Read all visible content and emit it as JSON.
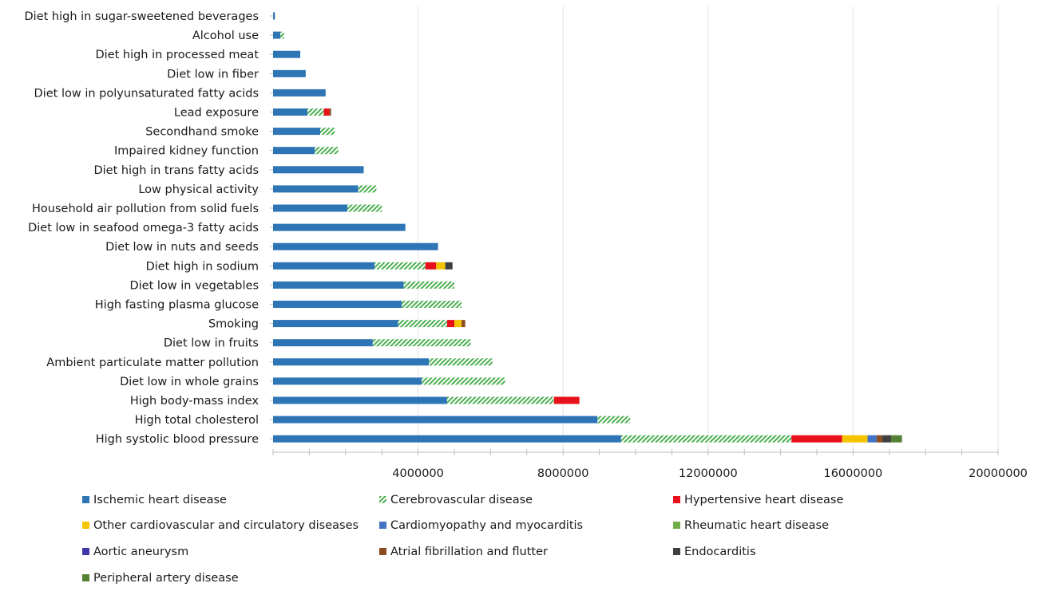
{
  "chart_data": {
    "type": "bar",
    "orientation": "horizontal",
    "stacked": true,
    "title": "",
    "xlabel": "",
    "ylabel": "",
    "xlim": [
      0,
      20000000
    ],
    "x_ticks": [
      "4000000",
      "8000000",
      "12000000",
      "16000000",
      "20000000"
    ],
    "x_tick_values": [
      4000000,
      8000000,
      12000000,
      16000000,
      20000000
    ],
    "grid": "vertical major gridlines",
    "legend_position": "bottom",
    "categories": [
      "Diet high in sugar-sweetened beverages",
      "Alcohol use",
      "Diet high in processed meat",
      "Diet low in fiber",
      "Diet low in polyunsaturated fatty acids",
      "Lead exposure",
      "Secondhand smoke",
      "Impaired kidney function",
      "Diet high in trans fatty acids",
      "Low physical activity",
      "Household air pollution from solid fuels",
      "Diet low in seafood omega-3 fatty acids",
      "Diet low in nuts and seeds",
      "Diet high in sodium",
      "Diet low in vegetables",
      "High fasting plasma glucose",
      "Smoking",
      "Diet low in fruits",
      "Ambient particulate matter pollution",
      "Diet low in whole grains",
      "High body-mass index",
      "High total cholesterol",
      "High systolic blood pressure"
    ],
    "series": [
      {
        "name": "Ischemic heart disease",
        "color": "#2e75b6",
        "pattern": "solid",
        "values": [
          50000,
          200000,
          750000,
          900000,
          1450000,
          950000,
          1300000,
          1150000,
          2500000,
          2350000,
          2050000,
          3650000,
          4550000,
          2800000,
          3600000,
          3550000,
          3450000,
          2750000,
          4300000,
          4100000,
          4800000,
          8950000,
          9600000
        ]
      },
      {
        "name": "Cerebrovascular disease",
        "color": "#4caf50",
        "pattern": "hatch",
        "values": [
          0,
          100000,
          0,
          0,
          0,
          450000,
          400000,
          650000,
          0,
          500000,
          950000,
          0,
          0,
          1400000,
          1400000,
          1650000,
          1350000,
          2700000,
          1750000,
          2300000,
          2950000,
          900000,
          4700000
        ]
      },
      {
        "name": "Hypertensive heart disease",
        "color": "#e8111b",
        "pattern": "solid",
        "values": [
          0,
          0,
          0,
          0,
          0,
          150000,
          0,
          0,
          0,
          0,
          0,
          0,
          0,
          300000,
          0,
          0,
          200000,
          0,
          0,
          0,
          700000,
          0,
          1400000
        ]
      },
      {
        "name": "Other cardiovascular and circulatory diseases",
        "color": "#f5c400",
        "pattern": "solid",
        "values": [
          0,
          0,
          0,
          0,
          0,
          0,
          0,
          0,
          0,
          0,
          0,
          0,
          0,
          250000,
          0,
          0,
          200000,
          0,
          0,
          0,
          0,
          0,
          700000
        ]
      },
      {
        "name": "Cardiomyopathy and myocarditis",
        "color": "#4472c4",
        "pattern": "solid",
        "values": [
          0,
          0,
          0,
          0,
          0,
          0,
          0,
          0,
          0,
          0,
          0,
          0,
          0,
          0,
          0,
          0,
          0,
          0,
          0,
          0,
          0,
          0,
          250000
        ]
      },
      {
        "name": "Rheumatic heart disease",
        "color": "#70ad47",
        "pattern": "solid",
        "values": [
          0,
          0,
          0,
          0,
          0,
          0,
          0,
          0,
          0,
          0,
          0,
          0,
          0,
          0,
          0,
          0,
          0,
          0,
          0,
          0,
          0,
          0,
          0
        ]
      },
      {
        "name": "Aortic aneurysm",
        "color": "#3d3aa8",
        "pattern": "solid",
        "values": [
          0,
          0,
          0,
          0,
          0,
          0,
          0,
          0,
          0,
          0,
          0,
          0,
          0,
          0,
          0,
          0,
          0,
          0,
          0,
          0,
          0,
          0,
          0
        ]
      },
      {
        "name": "Atrial fibrillation and flutter",
        "color": "#8b4d1f",
        "pattern": "solid",
        "values": [
          0,
          0,
          0,
          0,
          0,
          50000,
          0,
          0,
          0,
          0,
          0,
          0,
          0,
          0,
          0,
          0,
          100000,
          0,
          0,
          0,
          0,
          0,
          150000
        ]
      },
      {
        "name": "Endocarditis",
        "color": "#404040",
        "pattern": "solid",
        "values": [
          0,
          0,
          0,
          0,
          0,
          0,
          0,
          0,
          0,
          0,
          0,
          0,
          0,
          200000,
          0,
          0,
          0,
          0,
          0,
          0,
          0,
          0,
          250000
        ]
      },
      {
        "name": "Peripheral artery disease",
        "color": "#548235",
        "pattern": "solid",
        "values": [
          0,
          0,
          0,
          0,
          0,
          0,
          0,
          0,
          0,
          0,
          0,
          0,
          0,
          0,
          0,
          0,
          0,
          0,
          0,
          0,
          0,
          0,
          300000
        ]
      }
    ]
  }
}
